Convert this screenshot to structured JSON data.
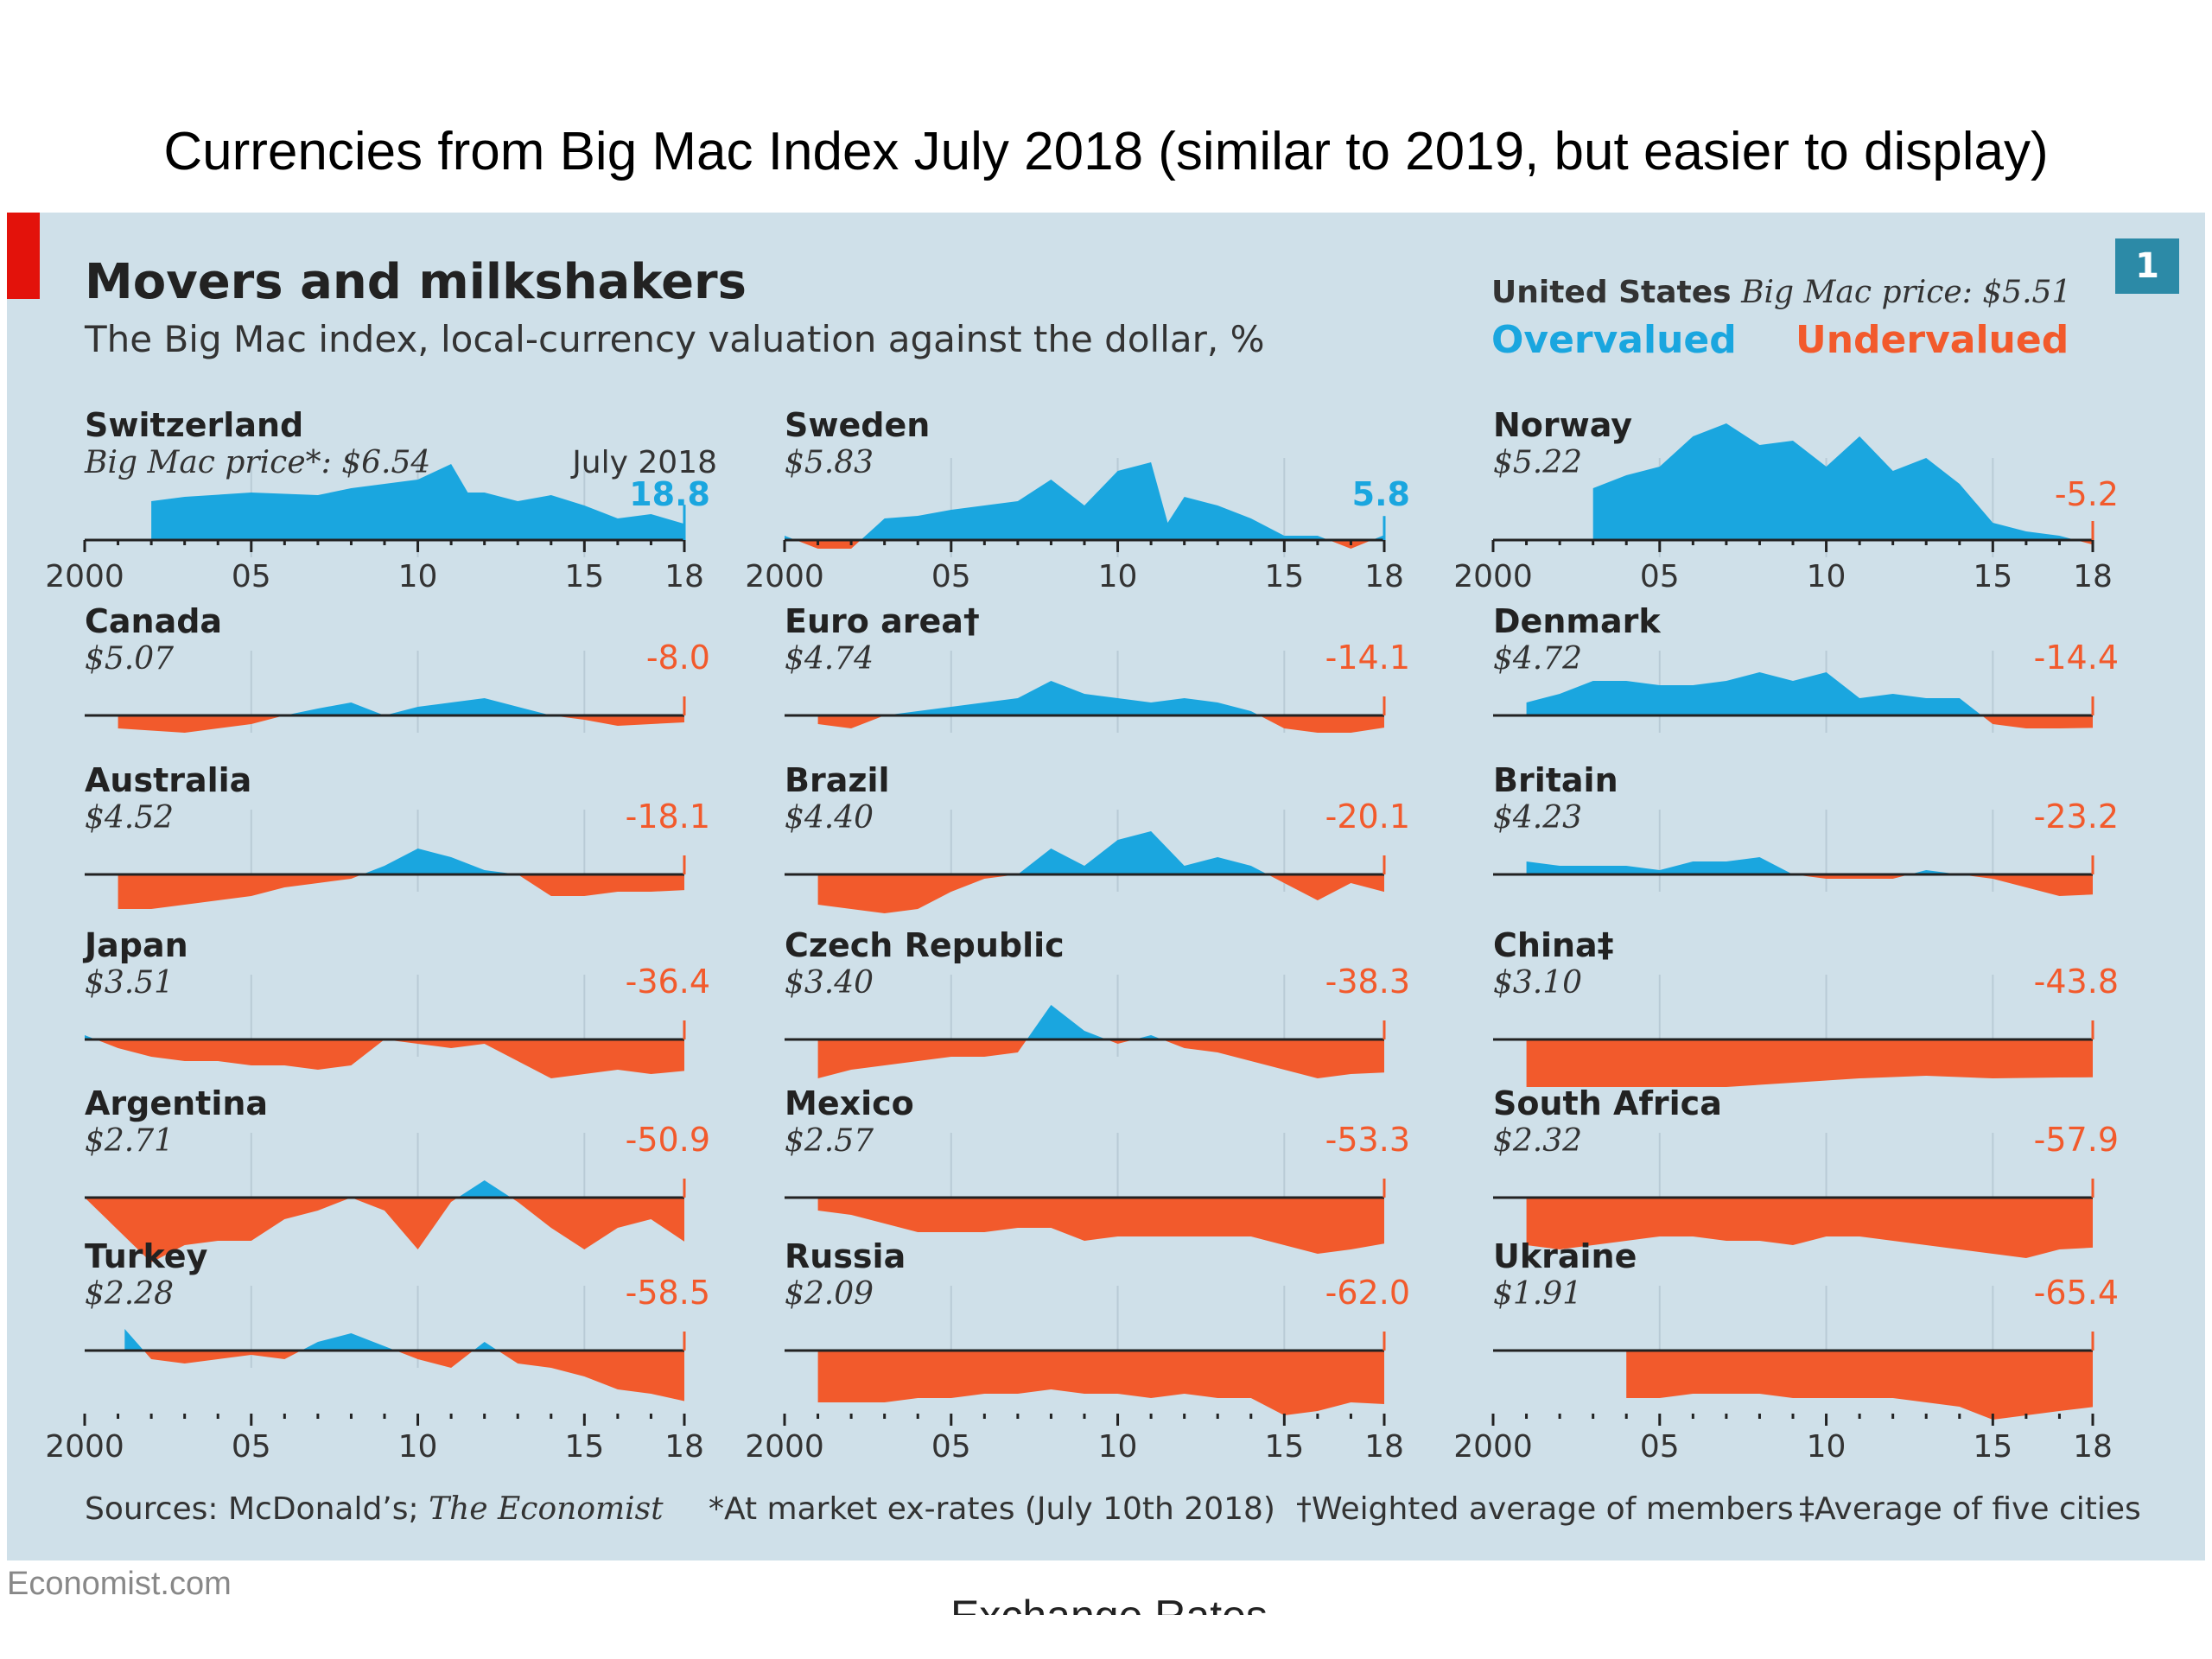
{
  "slide_title": "Currencies from Big Mac Index July 2018 (similar to 2019, but easier to display)",
  "hidden_footer_text": "Exchange Rates",
  "brand": "Economist.com",
  "badge": "1",
  "colors": {
    "overvalued": "#1aa6df",
    "undervalued": "#f25a2c",
    "background": "#cfe0e9",
    "accent": "#e3120b"
  },
  "header": {
    "title": "Movers and milkshakers",
    "subtitle": "The Big Mac index, local-currency valuation against the dollar, %",
    "us_country": "United States",
    "us_price_label": "Big Mac price: $5.51",
    "legend_over": "Overvalued",
    "legend_under": "Undervalued",
    "july_label": "July 2018"
  },
  "footnotes": {
    "sources_prefix": "Sources: McDonald’s; ",
    "sources_italic": "The Economist",
    "market": "*At market ex-rates (July 10th 2018)",
    "weighted": "†Weighted average of members",
    "cities": "‡Average of five cities"
  },
  "chart_data": {
    "type": "area",
    "title": "Movers and milkshakers",
    "subtitle": "The Big Mac index, local-currency valuation against the dollar, %",
    "x_range": [
      2000,
      2018
    ],
    "x_tick_labels": [
      "2000",
      "05",
      "10",
      "15",
      "18"
    ],
    "panels": [
      {
        "country": "Switzerland",
        "price": "Big Mac price*: $6.54",
        "latest": "18.8",
        "x": [
          2002,
          2003,
          2005,
          2007,
          2008,
          2009,
          2010,
          2011,
          2011.5,
          2012,
          2013,
          2014,
          2015,
          2016,
          2017,
          2018
        ],
        "values": [
          45,
          50,
          55,
          52,
          60,
          65,
          70,
          88,
          55,
          55,
          45,
          52,
          40,
          25,
          30,
          18.8
        ]
      },
      {
        "country": "Sweden",
        "price": "$5.83",
        "latest": "5.8",
        "x": [
          2000,
          2001,
          2002,
          2003,
          2004,
          2005,
          2006,
          2007,
          2008,
          2009,
          2010,
          2011,
          2011.5,
          2012,
          2013,
          2014,
          2015,
          2016,
          2017,
          2018
        ],
        "values": [
          5,
          -10,
          -10,
          25,
          28,
          35,
          40,
          45,
          70,
          40,
          80,
          90,
          20,
          50,
          40,
          25,
          5,
          5,
          -10,
          5.8
        ]
      },
      {
        "country": "Norway",
        "price": "$5.22",
        "latest": "-5.2",
        "x": [
          2000,
          2001,
          2002,
          2003,
          2004,
          2005,
          2006,
          2007,
          2008,
          2009,
          2010,
          2011,
          2012,
          2013,
          2014,
          2015,
          2016,
          2017,
          2018
        ],
        "values": [
          null,
          null,
          null,
          60,
          75,
          85,
          120,
          135,
          110,
          115,
          85,
          120,
          80,
          95,
          65,
          20,
          10,
          5,
          -5.2
        ]
      },
      {
        "country": "Canada",
        "price": "$5.07",
        "latest": "-8.0",
        "x": [
          2001,
          2003,
          2005,
          2006,
          2007,
          2008,
          2009,
          2010,
          2011,
          2012,
          2013,
          2014,
          2015,
          2016,
          2017,
          2018
        ],
        "values": [
          -15,
          -20,
          -10,
          0,
          8,
          15,
          0,
          10,
          15,
          20,
          10,
          0,
          -5,
          -12,
          -10,
          -8
        ]
      },
      {
        "country": "Euro area†",
        "price": "$4.74",
        "latest": "-14.1",
        "x": [
          2001,
          2002,
          2003,
          2004,
          2005,
          2006,
          2007,
          2008,
          2009,
          2010,
          2011,
          2012,
          2013,
          2014,
          2015,
          2016,
          2017,
          2018
        ],
        "values": [
          -10,
          -15,
          0,
          5,
          10,
          15,
          20,
          40,
          25,
          20,
          15,
          20,
          15,
          5,
          -15,
          -20,
          -20,
          -14.1
        ]
      },
      {
        "country": "Denmark",
        "price": "$4.72",
        "latest": "-14.4",
        "x": [
          2001,
          2002,
          2003,
          2004,
          2005,
          2006,
          2007,
          2008,
          2009,
          2010,
          2011,
          2012,
          2013,
          2014,
          2015,
          2016,
          2017,
          2018
        ],
        "values": [
          15,
          25,
          40,
          40,
          35,
          35,
          40,
          50,
          40,
          50,
          20,
          25,
          20,
          20,
          -10,
          -15,
          -15,
          -14.4
        ]
      },
      {
        "country": "Australia",
        "price": "$4.52",
        "latest": "-18.1",
        "x": [
          2001,
          2002,
          2003,
          2004,
          2005,
          2006,
          2007,
          2008,
          2009,
          2010,
          2011,
          2012,
          2013,
          2014,
          2015,
          2016,
          2017,
          2018
        ],
        "values": [
          -40,
          -40,
          -35,
          -30,
          -25,
          -15,
          -10,
          -5,
          10,
          30,
          20,
          5,
          0,
          -25,
          -25,
          -20,
          -20,
          -18.1
        ]
      },
      {
        "country": "Brazil",
        "price": "$4.40",
        "latest": "-20.1",
        "x": [
          2001,
          2002,
          2003,
          2004,
          2005,
          2006,
          2007,
          2008,
          2009,
          2010,
          2011,
          2012,
          2013,
          2014,
          2015,
          2016,
          2017,
          2018
        ],
        "values": [
          -35,
          -40,
          -45,
          -40,
          -20,
          -5,
          0,
          30,
          10,
          40,
          50,
          10,
          20,
          10,
          -10,
          -30,
          -10,
          -20.1
        ]
      },
      {
        "country": "Britain",
        "price": "$4.23",
        "latest": "-23.2",
        "x": [
          2001,
          2002,
          2003,
          2004,
          2005,
          2006,
          2007,
          2008,
          2009,
          2010,
          2011,
          2012,
          2013,
          2014,
          2015,
          2016,
          2017,
          2018
        ],
        "values": [
          15,
          10,
          10,
          10,
          5,
          15,
          15,
          20,
          0,
          -5,
          -5,
          -5,
          5,
          0,
          -5,
          -15,
          -25,
          -23.2
        ]
      },
      {
        "country": "Japan",
        "price": "$3.51",
        "latest": "-36.4",
        "x": [
          2000,
          2001,
          2002,
          2003,
          2004,
          2005,
          2006,
          2007,
          2008,
          2009,
          2010,
          2011,
          2012,
          2013,
          2014,
          2015,
          2016,
          2017,
          2018
        ],
        "values": [
          5,
          -10,
          -20,
          -25,
          -25,
          -30,
          -30,
          -35,
          -30,
          0,
          -5,
          -10,
          -5,
          -25,
          -45,
          -40,
          -35,
          -40,
          -36.4
        ]
      },
      {
        "country": "Czech Republic",
        "price": "$3.40",
        "latest": "-38.3",
        "x": [
          2001,
          2002,
          2003,
          2004,
          2005,
          2006,
          2007,
          2008,
          2009,
          2010,
          2011,
          2012,
          2013,
          2014,
          2015,
          2016,
          2017,
          2018
        ],
        "values": [
          -45,
          -35,
          -30,
          -25,
          -20,
          -20,
          -15,
          40,
          10,
          -5,
          5,
          -10,
          -15,
          -25,
          -35,
          -45,
          -40,
          -38.3
        ]
      },
      {
        "country": "China‡",
        "price": "$3.10",
        "latest": "-43.8",
        "x": [
          2001,
          2003,
          2005,
          2007,
          2009,
          2011,
          2013,
          2015,
          2017,
          2018
        ],
        "values": [
          -55,
          -55,
          -55,
          -55,
          -50,
          -45,
          -42,
          -45,
          -44,
          -43.8
        ]
      },
      {
        "country": "Argentina",
        "price": "$2.71",
        "latest": "-50.9",
        "x": [
          2000,
          2002,
          2003,
          2004,
          2005,
          2006,
          2007,
          2008,
          2009,
          2010,
          2011,
          2012,
          2013,
          2014,
          2015,
          2016,
          2017,
          2018
        ],
        "values": [
          0,
          -75,
          -55,
          -50,
          -50,
          -25,
          -15,
          0,
          -15,
          -60,
          -5,
          20,
          -5,
          -35,
          -60,
          -35,
          -25,
          -50.9
        ]
      },
      {
        "country": "Mexico",
        "price": "$2.57",
        "latest": "-53.3",
        "x": [
          2001,
          2002,
          2003,
          2004,
          2005,
          2006,
          2007,
          2008,
          2009,
          2010,
          2011,
          2012,
          2013,
          2014,
          2015,
          2016,
          2017,
          2018
        ],
        "values": [
          -15,
          -20,
          -30,
          -40,
          -40,
          -40,
          -35,
          -35,
          -50,
          -45,
          -45,
          -45,
          -45,
          -45,
          -55,
          -65,
          -60,
          -53.3
        ]
      },
      {
        "country": "South Africa",
        "price": "$2.32",
        "latest": "-57.9",
        "x": [
          2001,
          2002,
          2003,
          2004,
          2005,
          2006,
          2007,
          2008,
          2009,
          2010,
          2011,
          2012,
          2013,
          2014,
          2015,
          2016,
          2017,
          2018
        ],
        "values": [
          -55,
          -60,
          -55,
          -50,
          -45,
          -45,
          -50,
          -50,
          -55,
          -45,
          -45,
          -50,
          -55,
          -60,
          -65,
          -70,
          -60,
          -57.9
        ]
      },
      {
        "country": "Turkey",
        "price": "$2.28",
        "latest": "-58.5",
        "x": [
          2001,
          2001.2,
          2002,
          2003,
          2004,
          2005,
          2006,
          2007,
          2008,
          2009,
          2010,
          2011,
          2012,
          2013,
          2014,
          2015,
          2016,
          2017,
          2018
        ],
        "values": [
          null,
          25,
          -10,
          -15,
          -10,
          -5,
          -10,
          10,
          20,
          5,
          -10,
          -20,
          10,
          -15,
          -20,
          -30,
          -45,
          -50,
          -58.5
        ]
      },
      {
        "country": "Russia",
        "price": "$2.09",
        "latest": "-62.0",
        "x": [
          2001,
          2002,
          2003,
          2004,
          2005,
          2006,
          2007,
          2008,
          2009,
          2010,
          2011,
          2012,
          2013,
          2014,
          2015,
          2016,
          2017,
          2018
        ],
        "values": [
          -60,
          -60,
          -60,
          -55,
          -55,
          -50,
          -50,
          -45,
          -50,
          -50,
          -55,
          -50,
          -55,
          -55,
          -75,
          -70,
          -60,
          -62.0
        ]
      },
      {
        "country": "Ukraine",
        "price": "$1.91",
        "latest": "-65.4",
        "x": [
          2004,
          2005,
          2006,
          2007,
          2008,
          2009,
          2010,
          2011,
          2012,
          2013,
          2014,
          2015,
          2016,
          2017,
          2018
        ],
        "values": [
          -55,
          -55,
          -50,
          -50,
          -50,
          -55,
          -55,
          -55,
          -55,
          -60,
          -65,
          -80,
          -75,
          -70,
          -65.4
        ]
      }
    ]
  }
}
